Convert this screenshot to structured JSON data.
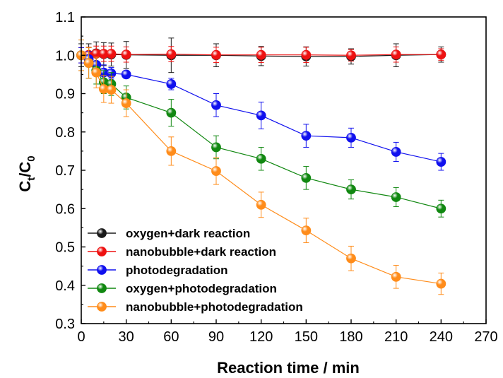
{
  "chart_data": {
    "type": "line",
    "title": "",
    "xlabel": "Reaction time / min",
    "ylabel_main": "C",
    "ylabel_sub1": "t",
    "ylabel_slash": "/C",
    "ylabel_sub2": "0",
    "xlim": [
      0,
      270
    ],
    "ylim": [
      0.3,
      1.1
    ],
    "xticks": [
      0,
      30,
      60,
      90,
      120,
      150,
      180,
      210,
      240,
      270
    ],
    "yticks": [
      0.3,
      0.4,
      0.5,
      0.6,
      0.7,
      0.8,
      0.9,
      1.0,
      1.1
    ],
    "legend_position": "bottom-left",
    "grid": false,
    "series": [
      {
        "name": "oxygen+dark reaction",
        "color": "#1a1a1a",
        "x": [
          0,
          5,
          10,
          15,
          20,
          30,
          60,
          90,
          120,
          150,
          180,
          210,
          240
        ],
        "y": [
          1.0,
          1.0,
          1.005,
          1.003,
          1.002,
          1.001,
          1.0,
          1.0,
          0.998,
          0.997,
          0.997,
          1.0,
          1.002
        ],
        "err": [
          0.03,
          0.03,
          0.03,
          0.03,
          0.03,
          0.035,
          0.045,
          0.03,
          0.025,
          0.025,
          0.02,
          0.03,
          0.02
        ]
      },
      {
        "name": "nanobubble+dark reaction",
        "color": "#ee1111",
        "x": [
          0,
          5,
          10,
          15,
          20,
          30,
          60,
          90,
          120,
          150,
          180,
          210,
          240
        ],
        "y": [
          1.0,
          1.001,
          1.004,
          1.004,
          1.004,
          1.002,
          1.003,
          1.001,
          1.001,
          1.001,
          1.0,
          1.002,
          1.002
        ],
        "err": [
          0.02,
          0.02,
          0.02,
          0.02,
          0.02,
          0.02,
          0.02,
          0.02,
          0.02,
          0.02,
          0.015,
          0.02,
          0.015
        ]
      },
      {
        "name": "photodegradation",
        "color": "#1010ee",
        "x": [
          0,
          5,
          10,
          15,
          20,
          30,
          60,
          90,
          120,
          150,
          180,
          210,
          240
        ],
        "y": [
          1.0,
          0.99,
          0.975,
          0.955,
          0.953,
          0.95,
          0.925,
          0.87,
          0.843,
          0.79,
          0.785,
          0.748,
          0.722
        ],
        "err": [
          0.02,
          0.02,
          0.02,
          0.02,
          0.015,
          0.01,
          0.015,
          0.03,
          0.035,
          0.03,
          0.025,
          0.025,
          0.022
        ]
      },
      {
        "name": "oxygen+photodegradation",
        "color": "#118811",
        "x": [
          0,
          5,
          10,
          15,
          20,
          30,
          60,
          90,
          120,
          150,
          180,
          210,
          240
        ],
        "y": [
          1.0,
          0.98,
          0.96,
          0.93,
          0.925,
          0.89,
          0.85,
          0.76,
          0.73,
          0.68,
          0.65,
          0.63,
          0.6
        ],
        "err": [
          0.04,
          0.04,
          0.035,
          0.03,
          0.03,
          0.03,
          0.035,
          0.03,
          0.03,
          0.03,
          0.025,
          0.025,
          0.022
        ]
      },
      {
        "name": "nanobubble+photodegradation",
        "color": "#ff8c1a",
        "x": [
          0,
          5,
          10,
          15,
          20,
          30,
          60,
          90,
          120,
          150,
          180,
          210,
          240
        ],
        "y": [
          1.0,
          0.98,
          0.955,
          0.912,
          0.91,
          0.875,
          0.75,
          0.698,
          0.61,
          0.543,
          0.47,
          0.422,
          0.404
        ],
        "err": [
          0.04,
          0.04,
          0.04,
          0.035,
          0.035,
          0.035,
          0.037,
          0.035,
          0.033,
          0.032,
          0.032,
          0.03,
          0.028
        ]
      }
    ]
  }
}
